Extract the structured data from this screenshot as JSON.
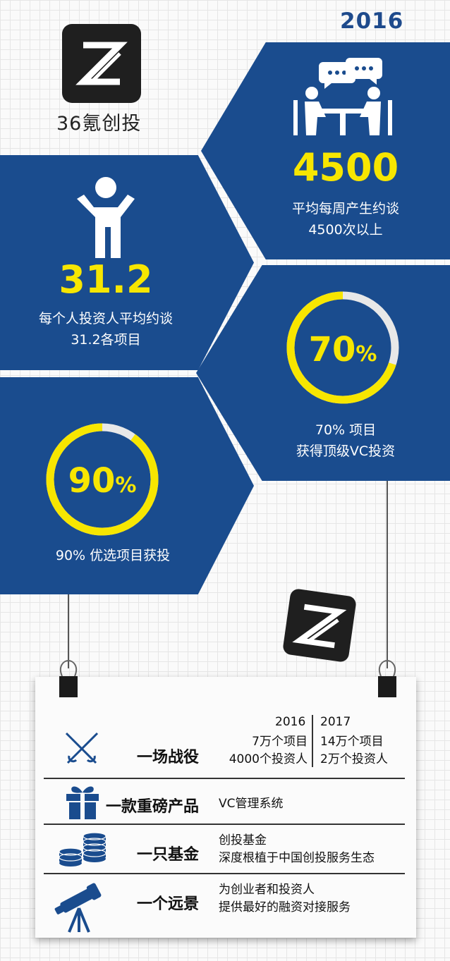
{
  "header": {
    "year": "2016"
  },
  "brand": {
    "name": "36氪创投"
  },
  "stats": {
    "meetings": {
      "value": "4500",
      "line1": "平均每周产生约谈",
      "line2": "4500次以上"
    },
    "per_investor": {
      "value": "31.2",
      "line1": "每个人投资人平均约谈",
      "line2": "31.2各项目"
    },
    "vc_funded": {
      "percent": 70,
      "value": "70",
      "unit": "%",
      "line1": "70% 项目",
      "line2": "获得顶级VC投资"
    },
    "selected_funded": {
      "percent": 90,
      "value": "90",
      "unit": "%",
      "line1": "90% 优选项目获投"
    }
  },
  "colors": {
    "blue": "#1a4c8e",
    "yellow": "#f7e600",
    "ring_track": "#e8e8e8"
  },
  "board": {
    "columns": [
      "2016",
      "2017"
    ],
    "rows": [
      {
        "icon": "fencing-swords-icon",
        "label": "一场战役",
        "y2016_line1": "7万个项目",
        "y2016_line2": "4000个投资人",
        "y2017_line1": "14万个项目",
        "y2017_line2": "2万个投资人"
      },
      {
        "icon": "gift-box-icon",
        "label": "一款重磅产品",
        "text": "VC管理系统"
      },
      {
        "icon": "coin-stacks-icon",
        "label": "一只基金",
        "line1": "创投基金",
        "line2": "深度根植于中国创投服务生态"
      },
      {
        "icon": "telescope-icon",
        "label": "一个远景",
        "line1": "为创业者和投资人",
        "line2": "提供最好的融资对接服务"
      }
    ]
  }
}
